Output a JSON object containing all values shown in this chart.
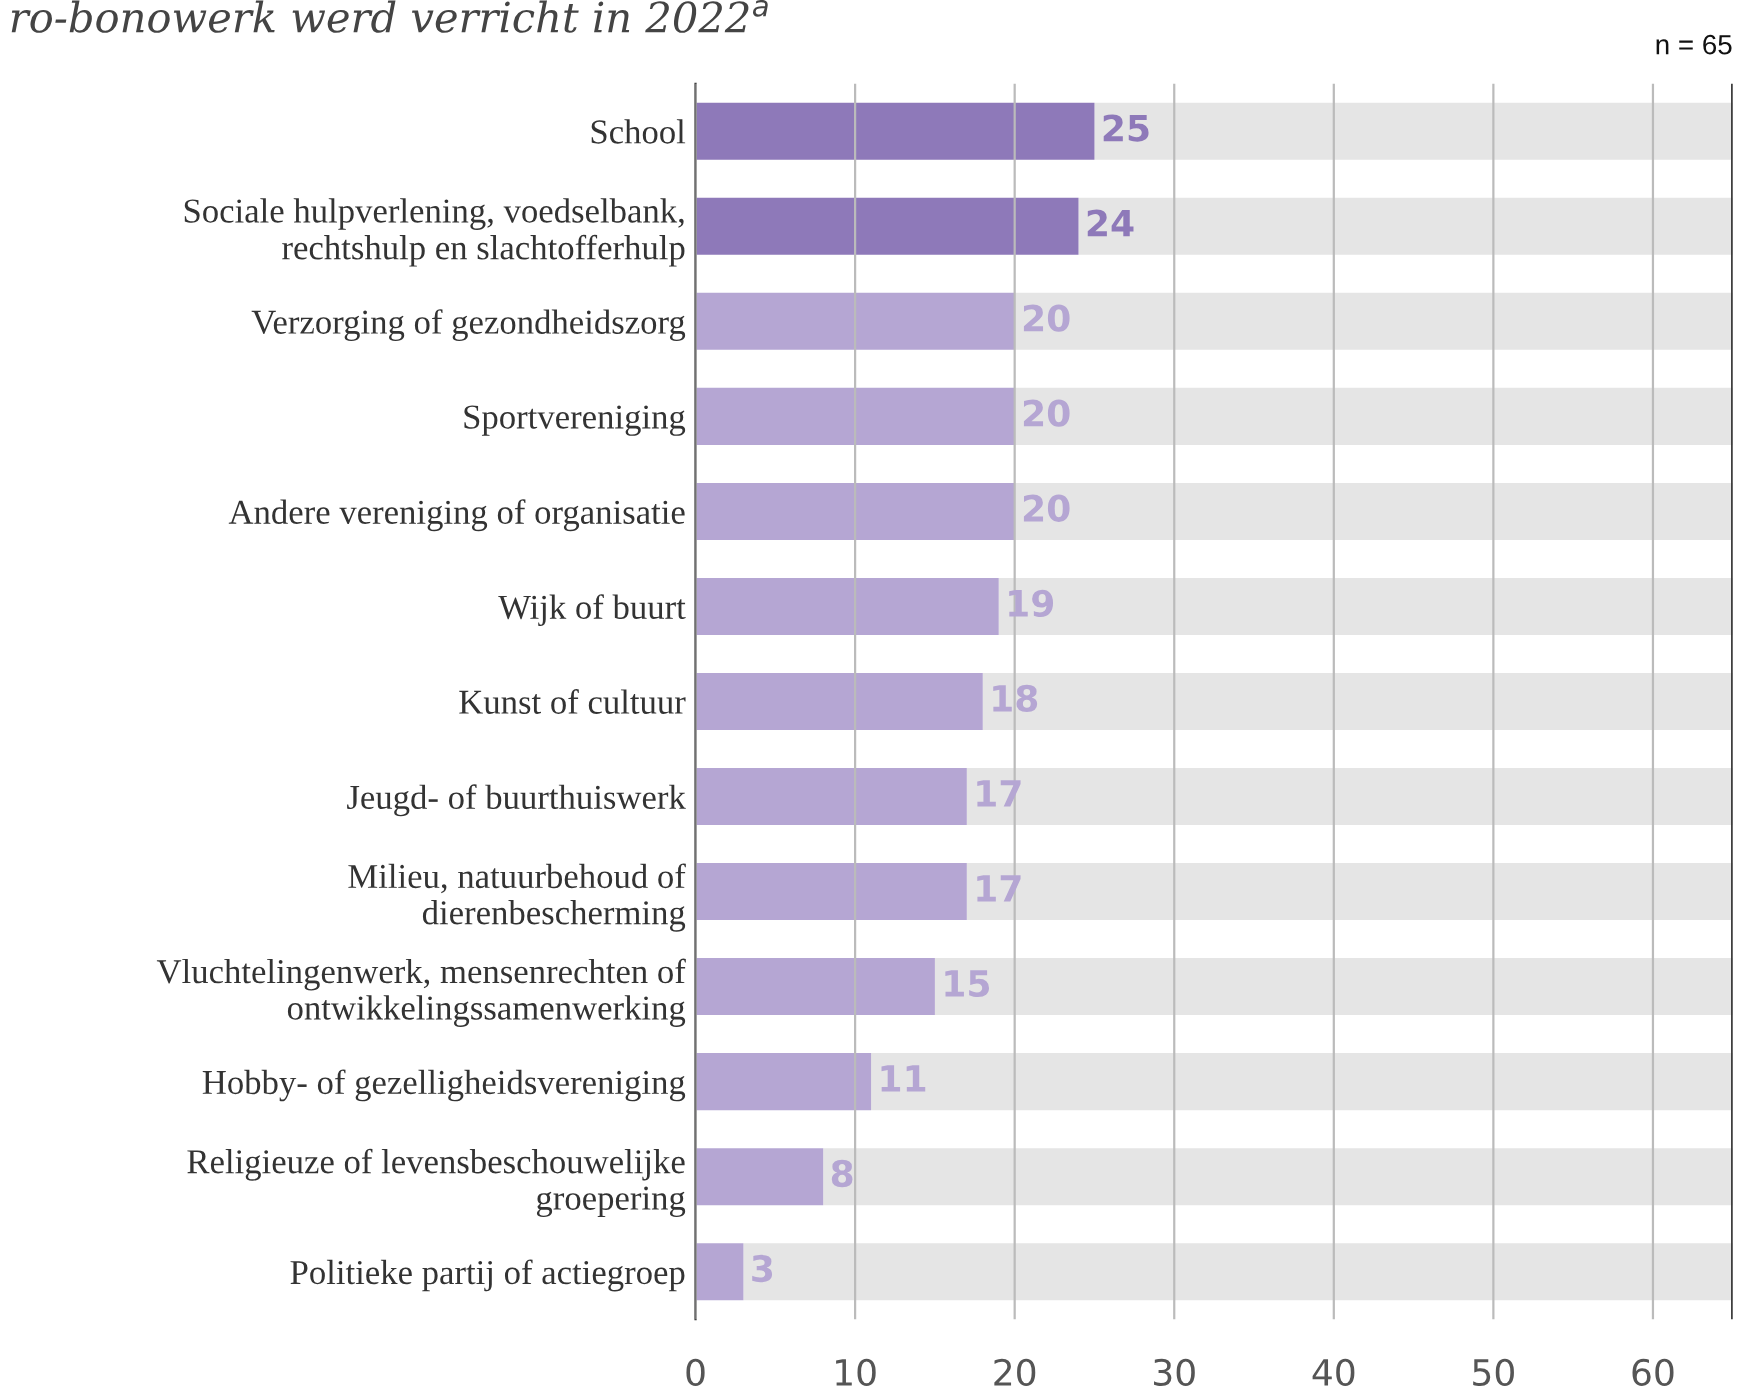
{
  "chart_data": {
    "type": "bar",
    "orientation": "horizontal",
    "title": "ro-bonowerk werd verricht in 2022$^{a}$",
    "categories": [
      "School",
      "Sociale hulpverlening, voedselbank,\nrechtshulp en slachtofferhulp",
      "Verzorging of gezondheidszorg",
      "Sportvereniging",
      "Andere vereniging of organisatie",
      "Wijk of buurt",
      "Kunst of cultuur",
      "Jeugd- of buurthuiswerk",
      "Milieu, natuurbehoud of\ndierenbescherming",
      "Vluchtelingenwerk, mensenrechten of\nontwikkelingssamenwerking",
      "Hobby- of gezelligheidsvereniging",
      "Religieuze of levensbeschouwelijke\ngroepering",
      "Politieke partij of actiegroep"
    ],
    "series": [
      {
        "colors": [
          "#8e79b9",
          "#8e79b9",
          "#b5a6d3",
          "#b5a6d3",
          "#b5a6d3",
          "#b5a6d3",
          "#b5a6d3",
          "#b5a6d3",
          "#b5a6d3",
          "#b5a6d3",
          "#b5a6d3",
          "#b5a6d3",
          "#b5a6d3"
        ],
        "values": [
          25,
          24,
          20,
          20,
          20,
          19,
          18,
          17,
          17,
          15,
          11,
          8,
          3
        ],
        "data_labels": true
      },
      {
        "color": "#e5e5e5",
        "values": [
          40,
          41,
          45,
          45,
          45,
          46,
          47,
          48,
          48,
          50,
          54,
          57,
          62
        ]
      }
    ],
    "stacked": true,
    "xlim": [
      0,
      65
    ],
    "xticks": [
      0,
      10,
      20,
      30,
      40,
      50,
      60
    ],
    "grid": "x",
    "ref_lines": [
      {
        "axis": "x",
        "value": 65,
        "label": "n = 65",
        "color": "#333333"
      }
    ]
  }
}
